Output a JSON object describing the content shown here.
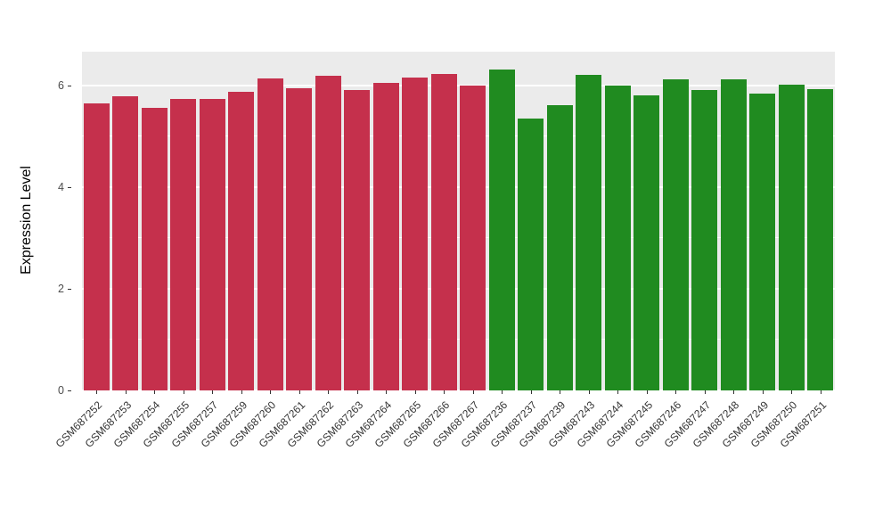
{
  "chart_data": {
    "type": "bar",
    "title": "",
    "xlabel": "",
    "ylabel": "Expression Level",
    "ylim": [
      0,
      6.66
    ],
    "yticks": [
      0,
      2,
      4,
      6
    ],
    "yminor": [
      1,
      3,
      5
    ],
    "grid": "on",
    "legend": "none",
    "panel_background": "#EBEBEB",
    "grid_color": "#FFFFFF",
    "group_colors": {
      "group1": "#C5304C",
      "group2": "#208B20"
    },
    "categories": [
      "GSM687252",
      "GSM687253",
      "GSM687254",
      "GSM687255",
      "GSM687257",
      "GSM687259",
      "GSM687260",
      "GSM687261",
      "GSM687262",
      "GSM687263",
      "GSM687264",
      "GSM687265",
      "GSM687266",
      "GSM687267",
      "GSM687236",
      "GSM687237",
      "GSM687239",
      "GSM687243",
      "GSM687244",
      "GSM687245",
      "GSM687246",
      "GSM687247",
      "GSM687248",
      "GSM687249",
      "GSM687250",
      "GSM687251"
    ],
    "values": [
      5.65,
      5.78,
      5.55,
      5.73,
      5.73,
      5.87,
      6.13,
      5.95,
      6.18,
      5.91,
      6.05,
      6.15,
      6.22,
      6.0,
      6.31,
      5.35,
      5.6,
      6.2,
      5.99,
      5.8,
      6.12,
      5.91,
      6.12,
      5.83,
      6.02,
      5.93
    ],
    "groups": [
      "group1",
      "group1",
      "group1",
      "group1",
      "group1",
      "group1",
      "group1",
      "group1",
      "group1",
      "group1",
      "group1",
      "group1",
      "group1",
      "group1",
      "group2",
      "group2",
      "group2",
      "group2",
      "group2",
      "group2",
      "group2",
      "group2",
      "group2",
      "group2",
      "group2",
      "group2"
    ]
  }
}
